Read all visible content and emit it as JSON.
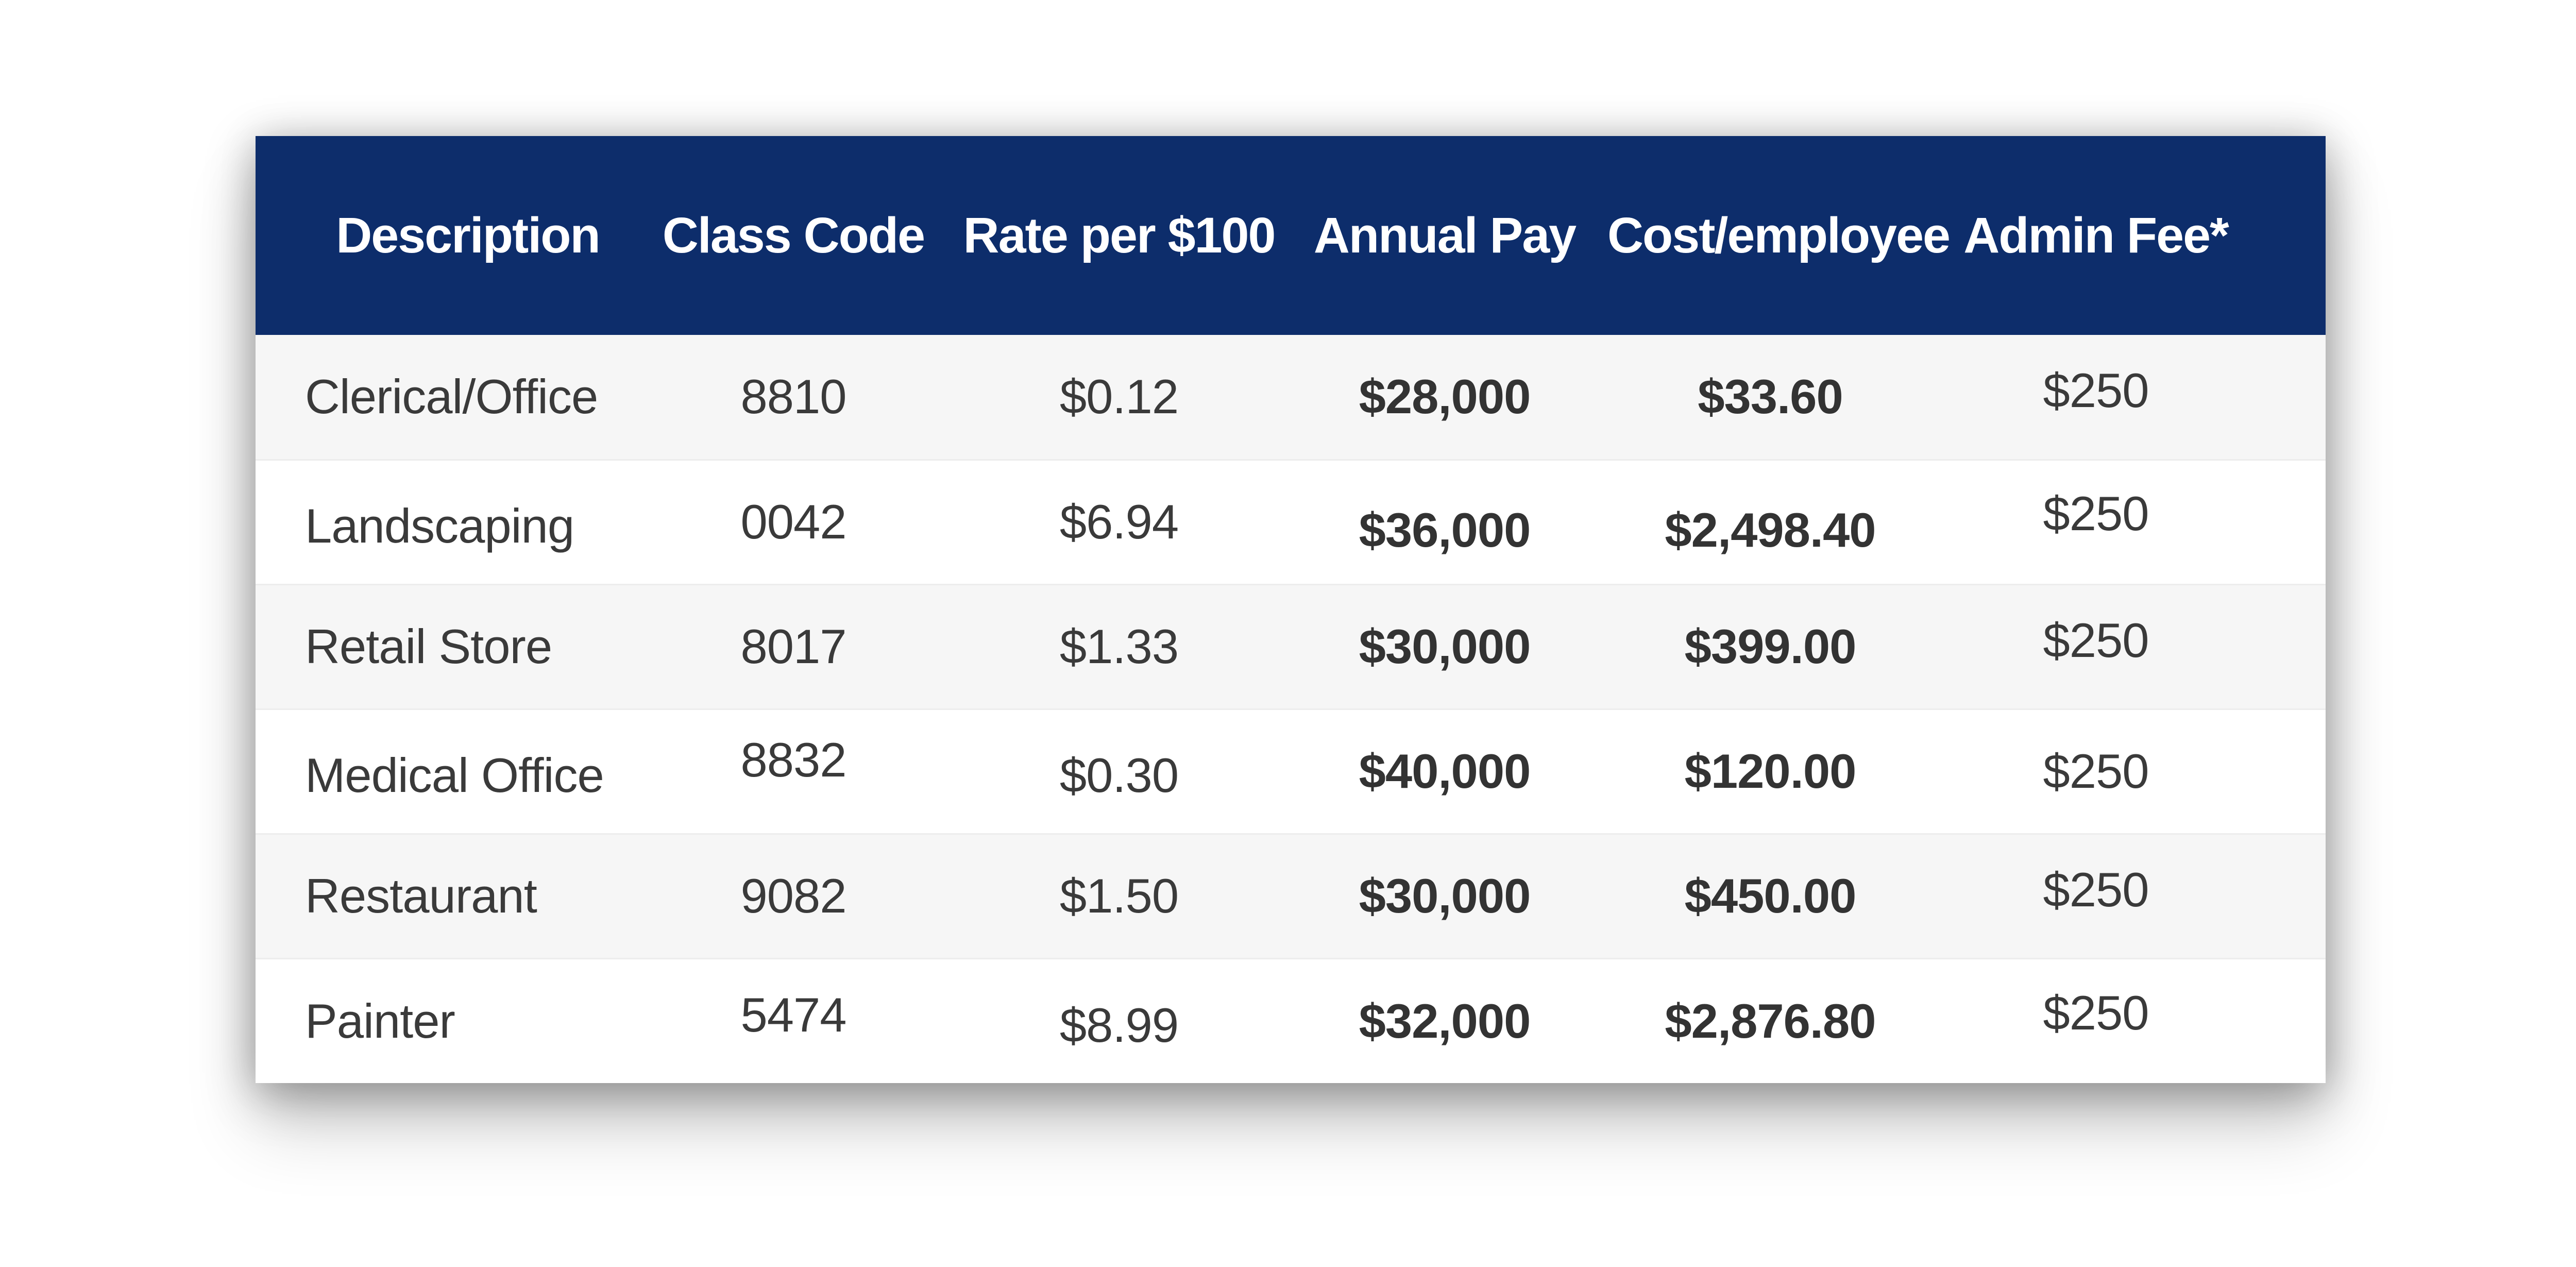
{
  "colors": {
    "header_bg": "#0d2d6b",
    "header_text": "#ffffff",
    "row_stripe_bg": "#f6f6f6",
    "row_bg": "#ffffff",
    "body_text": "#3a3a3a",
    "row_divider": "#ededed",
    "page_bg": "#ffffff"
  },
  "chart_data": {
    "type": "table",
    "columns": [
      "Description",
      "Class Code",
      "Rate per $100",
      "Annual Pay",
      "Cost/employee",
      "Admin Fee*"
    ],
    "rows": [
      [
        "Clerical/Office",
        "8810",
        "$0.12",
        "$28,000",
        "$33.60",
        "$250"
      ],
      [
        "Landscaping",
        "0042",
        "$6.94",
        "$36,000",
        "$2,498.40",
        "$250"
      ],
      [
        "Retail Store",
        "8017",
        "$1.33",
        "$30,000",
        "$399.00",
        "$250"
      ],
      [
        "Medical Office",
        "8832",
        "$0.30",
        "$40,000",
        "$120.00",
        "$250"
      ],
      [
        "Restaurant",
        "9082",
        "$1.50",
        "$30,000",
        "$450.00",
        "$250"
      ],
      [
        "Painter",
        "5474",
        "$8.99",
        "$32,000",
        "$2,876.80",
        "$250"
      ]
    ],
    "layout_hints": {
      "bold_columns": [
        "Annual Pay",
        "Cost/employee"
      ],
      "striped_rows": true,
      "header_style": "navy-bar"
    }
  }
}
